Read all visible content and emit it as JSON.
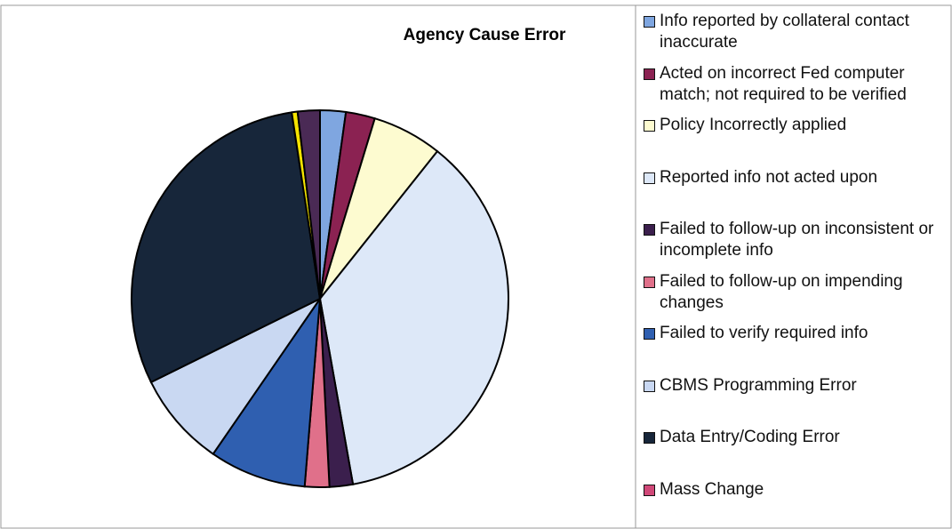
{
  "chart_data": {
    "type": "pie",
    "title": "Agency Cause Error",
    "categories": [
      "Info reported by collateral contact inaccurate",
      "Acted on incorrect Fed computer match; not required to be verified",
      "Policy Incorrectly applied",
      "Reported info not acted upon",
      "Failed to follow-up on inconsistent or incomplete info",
      "Failed to follow-up on impending changes",
      "Failed to verify required info",
      "CBMS Programming Error",
      "Data Entry/Coding Error",
      "Mass Change",
      null,
      null
    ],
    "values": [
      2.2,
      2.5,
      6,
      36.5,
      2,
      2.1,
      8.3,
      8.1,
      29.9,
      0,
      0.5,
      1.9
    ],
    "colors": [
      "#7fa6e0",
      "#8b2252",
      "#fdfbd0",
      "#dde8f8",
      "#3b1f4d",
      "#e0708a",
      "#2f5fb0",
      "#c9d8f2",
      "#17263a",
      "#d04878",
      "#f5e400",
      "#4a2a55"
    ],
    "legend": "right"
  }
}
